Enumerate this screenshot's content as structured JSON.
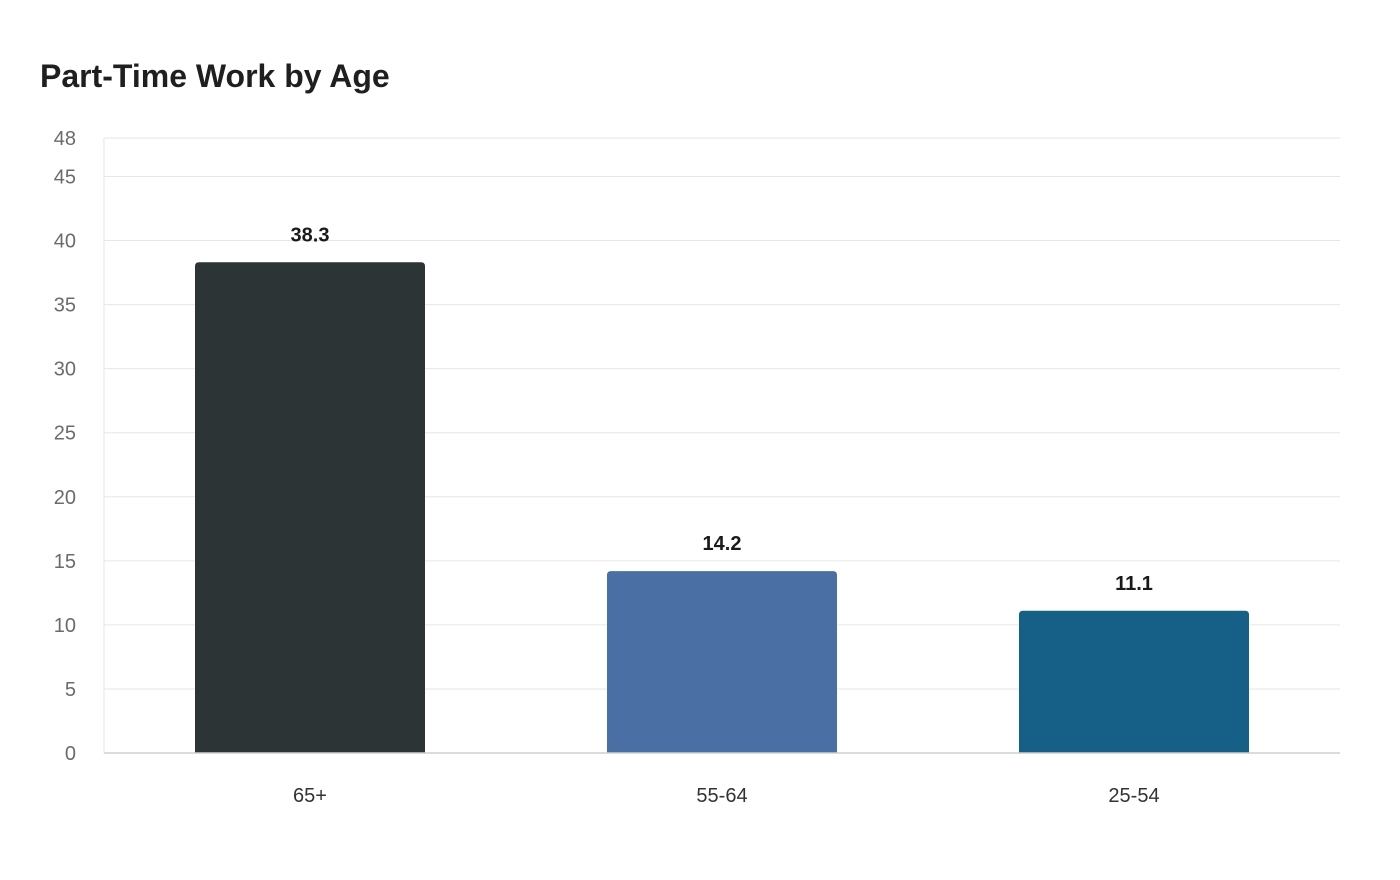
{
  "chart_data": {
    "type": "bar",
    "title": "Part-Time Work by Age",
    "xlabel": "",
    "ylabel": "",
    "categories": [
      "65+",
      "55-64",
      "25-54"
    ],
    "values": [
      38.3,
      14.2,
      11.1
    ],
    "value_labels": [
      "38.3",
      "14.2",
      "11.1"
    ],
    "colors": [
      "#2d3436",
      "#4a6fa5",
      "#166088"
    ],
    "ylim": [
      0,
      48
    ],
    "yticks": [
      0,
      5,
      10,
      15,
      20,
      25,
      30,
      35,
      40,
      45,
      48
    ],
    "grid": true,
    "legend": "none"
  }
}
